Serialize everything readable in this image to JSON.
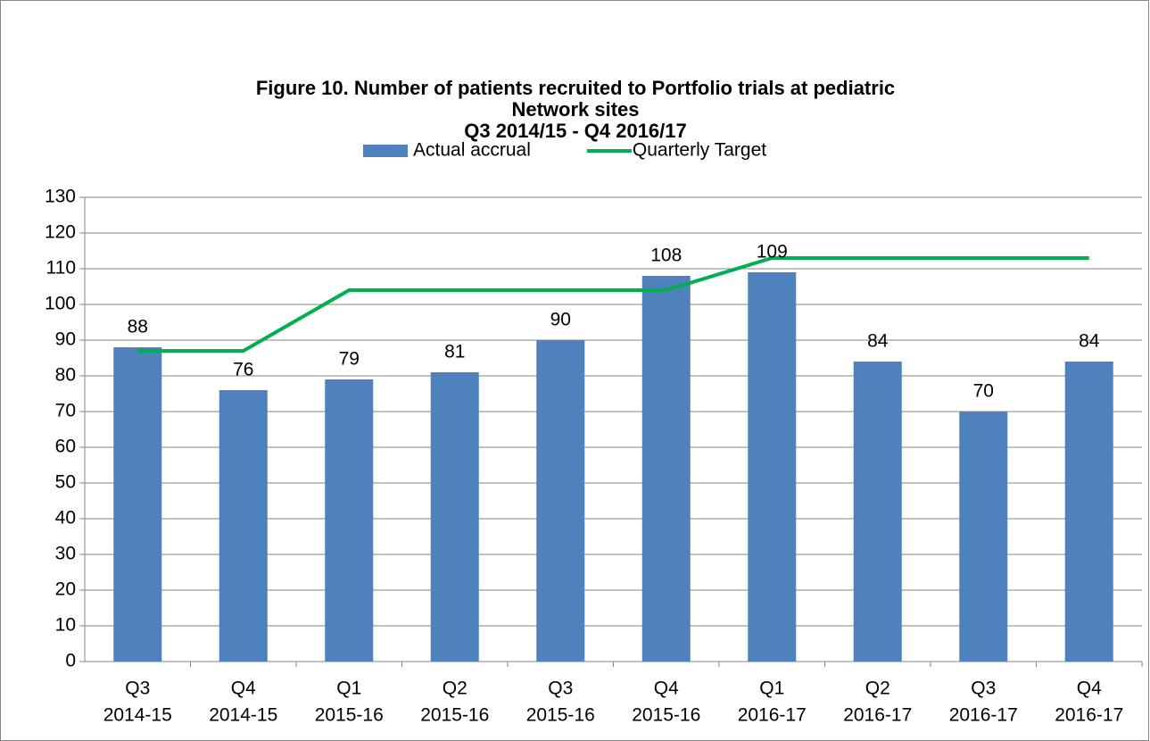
{
  "chart_data": {
    "type": "bar",
    "title": [
      "Figure 10. Number of patients recruited to Portfolio trials at pediatric",
      "Network sites",
      "Q3 2014/15 - Q4 2016/17"
    ],
    "categories": [
      [
        "Q3",
        "2014-15"
      ],
      [
        "Q4",
        "2014-15"
      ],
      [
        "Q1",
        "2015-16"
      ],
      [
        "Q2",
        "2015-16"
      ],
      [
        "Q3",
        "2015-16"
      ],
      [
        "Q4",
        "2015-16"
      ],
      [
        "Q1",
        "2016-17"
      ],
      [
        "Q2",
        "2016-17"
      ],
      [
        "Q3",
        "2016-17"
      ],
      [
        "Q4",
        "2016-17"
      ]
    ],
    "series": [
      {
        "name": "Actual accrual",
        "type": "bar",
        "color": "#4f81bd",
        "values": [
          88,
          76,
          79,
          81,
          90,
          108,
          109,
          84,
          70,
          84
        ]
      },
      {
        "name": "Quarterly Target",
        "type": "line",
        "color": "#00b050",
        "values": [
          87,
          87,
          104,
          104,
          104,
          104,
          113,
          113,
          113,
          113
        ]
      }
    ],
    "ylim": [
      0,
      130
    ],
    "yticks": [
      0,
      10,
      20,
      30,
      40,
      50,
      60,
      70,
      80,
      90,
      100,
      110,
      120,
      130
    ],
    "grid": true,
    "legend": "top"
  }
}
